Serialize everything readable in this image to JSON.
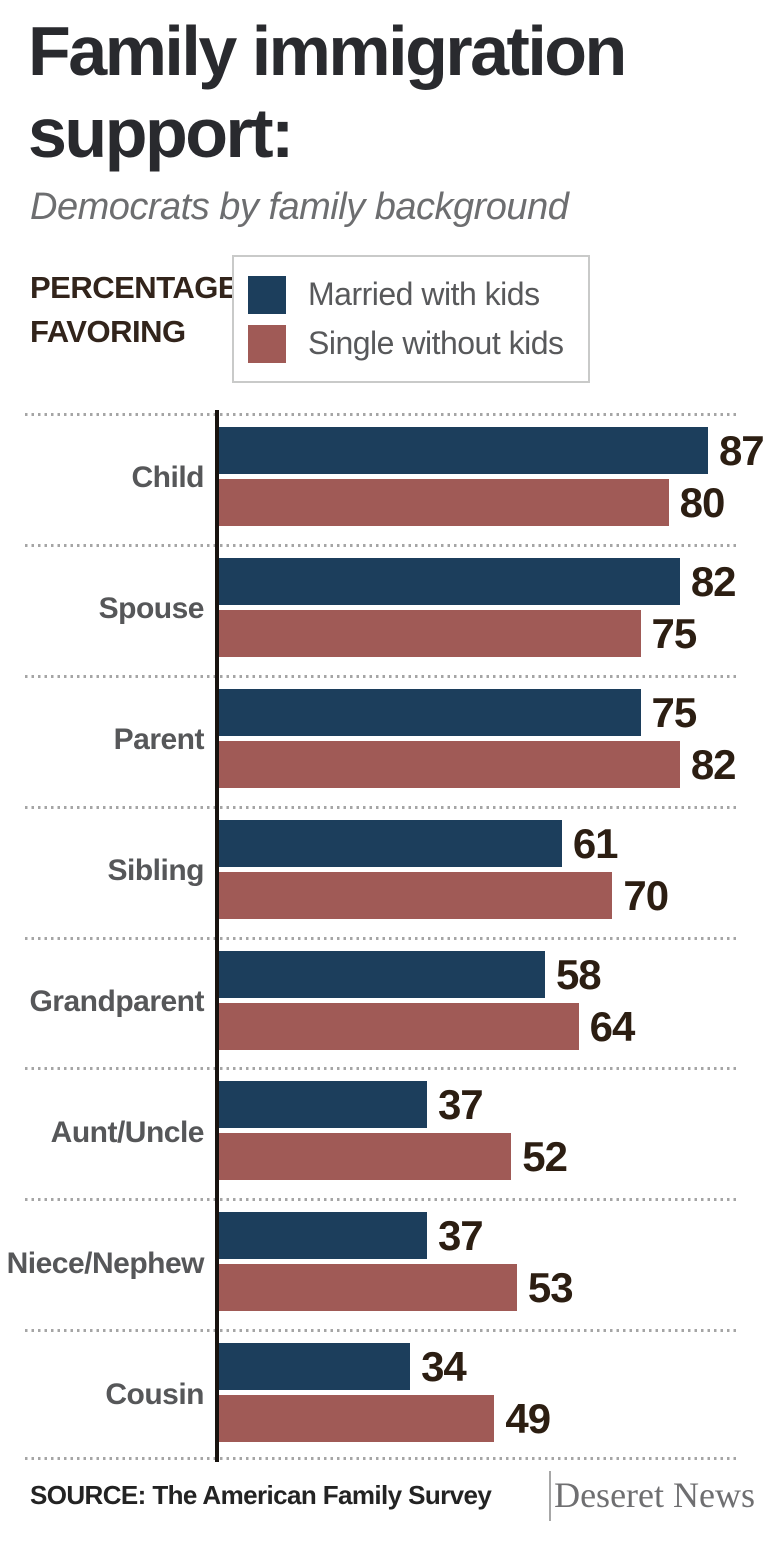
{
  "page": {
    "title_line1": "Family immigration",
    "title_line2": "support:",
    "subtitle": "Democrats by family background",
    "axis_label_line1": "PERCENTAGE",
    "axis_label_line2": "FAVORING"
  },
  "legend": {
    "items": [
      {
        "label": "Married with kids",
        "color": "#1c3e5c"
      },
      {
        "label": "Single without kids",
        "color": "#a05a56"
      }
    ]
  },
  "chart_data": {
    "type": "bar",
    "orientation": "horizontal",
    "title": "Family immigration support:",
    "subtitle": "Democrats by family background",
    "value_axis_label": "PERCENTAGE FAVORING",
    "categories": [
      "Child",
      "Spouse",
      "Parent",
      "Sibling",
      "Grandparent",
      "Aunt/Uncle",
      "Niece/Nephew",
      "Cousin"
    ],
    "series": [
      {
        "name": "Married with kids",
        "color": "#1c3e5c",
        "values": [
          87,
          82,
          75,
          61,
          58,
          37,
          37,
          34
        ]
      },
      {
        "name": "Single without kids",
        "color": "#a05a56",
        "values": [
          80,
          75,
          82,
          70,
          64,
          52,
          53,
          49
        ]
      }
    ],
    "xlim": [
      0,
      100
    ],
    "value_unit": "percent",
    "value_labels_shown": true,
    "grid": "dotted-row-separators",
    "legend_position": "top"
  },
  "colors": {
    "bar_married": "#1c3e5c",
    "bar_single": "#a05a56",
    "value_label": "#2c1e12",
    "category_label": "#565759",
    "axis_line": "#18130f",
    "separator": "#a5a5a5"
  },
  "footer": {
    "source": "SOURCE: The American Family Survey",
    "credit": "Deseret News"
  }
}
